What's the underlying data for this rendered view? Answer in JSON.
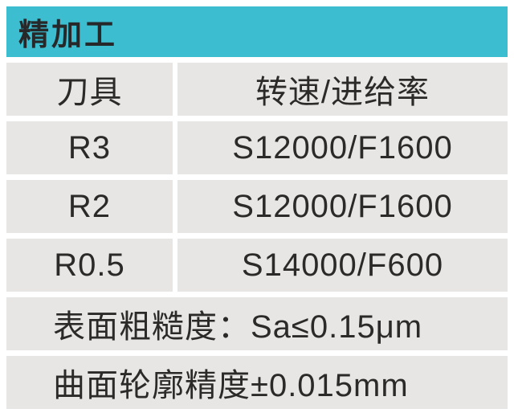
{
  "header": {
    "title": "精加工"
  },
  "table": {
    "columns": [
      "刀具",
      "转速/进给率"
    ],
    "rows": [
      {
        "tool": "R3",
        "speed_feed": "S12000/F1600"
      },
      {
        "tool": "R2",
        "speed_feed": "S12000/F1600"
      },
      {
        "tool": "R0.5",
        "speed_feed": "S14000/F600"
      }
    ],
    "notes": [
      "表面粗糙度：Sa≤0.15μm",
      "曲面轮廓精度±0.015mm"
    ]
  },
  "colors": {
    "accent_teal": "#3dbdd0",
    "cell_gray": "#e7e6e5",
    "text_dark": "#2b2a28",
    "background": "#ffffff"
  }
}
